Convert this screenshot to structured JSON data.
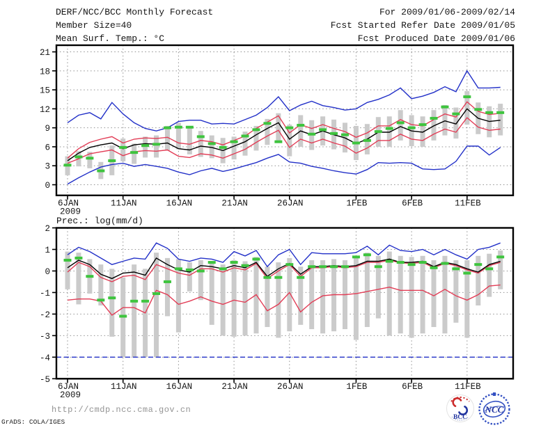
{
  "header": {
    "title": "DERF/NCC/BCC Monthly Forecast",
    "member_size": "Member Size=40",
    "temp_label": "Mean Surf. Temp.: °C",
    "for_range": "For 2009/01/06-2009/02/14",
    "fcst_started": "Fcst Started Refer Date 2009/01/05",
    "fcst_produced": "Fcst Produced Date 2009/01/06"
  },
  "panels": {
    "precip_label": "Prec.: log(mm/d)"
  },
  "footer": {
    "url": "http://cmdp.ncc.cma.gov.cn",
    "grads_credit": "GrADS: COLA/IGES",
    "bcc_text": "BCC",
    "ncc_text": "NCC"
  },
  "colors": {
    "frame": "#000000",
    "text": "#161616",
    "grid": "#909090",
    "bar": "#cbcbcb",
    "blue": "#2230c8",
    "red": "#e23c55",
    "green": "#3ec43e",
    "black": "#000000",
    "url_gray": "#949494",
    "logo_navy": "#21349f",
    "logo_blue": "#3350c2",
    "logo_red": "#cc2b2b"
  },
  "chart_data": [
    {
      "type": "line",
      "name": "temperature-chart",
      "title": "Mean Surf. Temp.: °C",
      "x_start": "2009-01-06",
      "x_end": "2009-02-14",
      "n_days": 40,
      "ylim": [
        -1.68,
        22.05
      ],
      "yticks": [
        0,
        3,
        6,
        9,
        12,
        15,
        18,
        21
      ],
      "xticks": [
        {
          "day": 1,
          "label": "6JAN",
          "sublabel": "2009"
        },
        {
          "day": 6,
          "label": "11JAN"
        },
        {
          "day": 11,
          "label": "16JAN"
        },
        {
          "day": 16,
          "label": "21JAN"
        },
        {
          "day": 21,
          "label": "26JAN"
        },
        {
          "day": 27,
          "label": "1FEB"
        },
        {
          "day": 32,
          "label": "6FEB"
        },
        {
          "day": 37,
          "label": "11FEB"
        }
      ],
      "series": [
        {
          "name": "ensemble-max",
          "color": "blue",
          "style": "line",
          "values": [
            9.8,
            11.0,
            11.4,
            10.4,
            13.0,
            11.2,
            9.8,
            8.9,
            8.5,
            9.0,
            10.0,
            10.2,
            10.2,
            9.6,
            9.7,
            9.6,
            10.3,
            11.0,
            12.2,
            13.9,
            11.7,
            12.6,
            13.2,
            12.5,
            12.2,
            11.8,
            12.0,
            13.0,
            13.5,
            14.2,
            15.3,
            13.6,
            14.0,
            14.6,
            15.5,
            14.7,
            18.0,
            15.3,
            15.3,
            15.4
          ]
        },
        {
          "name": "ensemble-min",
          "color": "blue",
          "style": "line",
          "values": [
            0.1,
            1.1,
            2.0,
            2.8,
            3.2,
            3.4,
            2.9,
            3.2,
            2.9,
            2.6,
            2.0,
            1.6,
            2.2,
            2.6,
            2.1,
            2.5,
            3.0,
            3.5,
            4.2,
            4.8,
            3.6,
            3.4,
            2.9,
            2.6,
            2.2,
            1.9,
            1.7,
            2.4,
            3.5,
            3.4,
            3.5,
            3.4,
            2.5,
            2.4,
            2.5,
            3.7,
            6.1,
            6.1,
            4.7,
            5.9
          ]
        },
        {
          "name": "upper-quartile",
          "color": "red",
          "style": "line",
          "values": [
            4.2,
            5.7,
            6.7,
            7.2,
            7.6,
            6.6,
            7.2,
            7.4,
            7.3,
            7.5,
            6.6,
            6.4,
            7.0,
            6.8,
            6.3,
            7.0,
            7.7,
            8.9,
            9.9,
            10.9,
            8.2,
            9.5,
            8.9,
            9.5,
            8.9,
            8.4,
            7.5,
            8.2,
            9.3,
            9.3,
            10.3,
            9.5,
            9.3,
            10.3,
            11.2,
            10.7,
            13.1,
            11.6,
            11.1,
            11.3
          ]
        },
        {
          "name": "lower-quartile",
          "color": "red",
          "style": "line",
          "values": [
            3.4,
            4.1,
            4.9,
            5.2,
            5.5,
            4.6,
            5.2,
            5.4,
            5.3,
            5.5,
            4.5,
            4.3,
            4.9,
            4.7,
            4.2,
            4.9,
            5.6,
            6.7,
            7.7,
            8.6,
            5.9,
            7.2,
            6.6,
            7.2,
            6.6,
            6.1,
            5.0,
            5.8,
            7.0,
            7.0,
            8.0,
            7.2,
            7.0,
            8.0,
            8.8,
            8.3,
            10.6,
            9.1,
            8.6,
            8.8
          ]
        },
        {
          "name": "ensemble-mean",
          "color": "black",
          "style": "line",
          "values": [
            3.8,
            5.0,
            5.9,
            6.3,
            6.6,
            5.7,
            6.3,
            6.5,
            6.4,
            6.6,
            5.7,
            5.5,
            6.1,
            5.9,
            5.4,
            6.1,
            6.8,
            7.9,
            8.9,
            9.8,
            7.2,
            8.5,
            7.9,
            8.5,
            7.9,
            7.4,
            6.5,
            7.2,
            8.3,
            8.3,
            9.2,
            8.5,
            8.3,
            9.3,
            10.1,
            9.6,
            12.0,
            10.5,
            10.0,
            10.2
          ]
        },
        {
          "name": "control-marker",
          "color": "green",
          "style": "dashes",
          "values": [
            3.1,
            4.4,
            4.2,
            2.2,
            3.8,
            5.9,
            5.1,
            6.2,
            6.4,
            9.0,
            9.1,
            9.1,
            7.6,
            6.5,
            5.9,
            6.8,
            7.7,
            8.7,
            9.7,
            6.8,
            9.0,
            9.4,
            8.0,
            8.7,
            8.1,
            7.9,
            6.6,
            7.0,
            8.4,
            8.9,
            9.8,
            9.0,
            9.5,
            10.5,
            12.3,
            11.2,
            13.9,
            11.9,
            11.4,
            11.4
          ]
        }
      ],
      "spread_bars": {
        "low": [
          1.5,
          2.9,
          2.6,
          0.9,
          1.5,
          3.7,
          3.3,
          4.3,
          4.3,
          5.4,
          5.6,
          4.8,
          4.4,
          4.2,
          3.4,
          4.0,
          4.6,
          5.4,
          6.3,
          6.9,
          4.5,
          6.0,
          5.5,
          6.2,
          5.6,
          5.1,
          3.9,
          4.8,
          6.0,
          6.0,
          7.0,
          6.1,
          6.0,
          7.0,
          7.8,
          7.3,
          9.5,
          8.0,
          7.5,
          7.8
        ],
        "high": [
          4.5,
          5.3,
          5.2,
          3.6,
          6.2,
          7.3,
          6.5,
          7.6,
          7.8,
          9.3,
          9.8,
          9.2,
          8.5,
          7.8,
          7.4,
          7.6,
          8.4,
          9.3,
          10.4,
          11.3,
          9.5,
          11.0,
          10.2,
          10.8,
          10.3,
          9.8,
          9.3,
          9.6,
          10.7,
          10.8,
          11.8,
          11.0,
          10.8,
          11.8,
          12.6,
          12.2,
          14.8,
          13.0,
          12.4,
          12.8
        ]
      }
    },
    {
      "type": "line",
      "name": "precipitation-chart",
      "title": "Prec.: log(mm/d)",
      "x_start": "2009-01-06",
      "x_end": "2009-02-14",
      "n_days": 40,
      "ylim": [
        -5,
        2
      ],
      "yticks": [
        2,
        1,
        0,
        -1,
        -2,
        -3,
        -4,
        -5
      ],
      "refline": {
        "value": -4,
        "color": "blue",
        "style": "dashed"
      },
      "xticks": [
        {
          "day": 1,
          "label": "6JAN",
          "sublabel": "2009"
        },
        {
          "day": 6,
          "label": "11JAN"
        },
        {
          "day": 11,
          "label": "16JAN"
        },
        {
          "day": 16,
          "label": "21JAN"
        },
        {
          "day": 21,
          "label": "26JAN"
        },
        {
          "day": 27,
          "label": "1FEB"
        },
        {
          "day": 32,
          "label": "6FEB"
        },
        {
          "day": 37,
          "label": "11FEB"
        }
      ],
      "series": [
        {
          "name": "ensemble-max",
          "color": "blue",
          "style": "line",
          "values": [
            0.75,
            1.1,
            0.9,
            0.6,
            0.3,
            0.45,
            0.6,
            0.55,
            1.3,
            1.05,
            0.55,
            0.45,
            0.6,
            0.55,
            0.4,
            0.9,
            0.7,
            0.95,
            0.2,
            0.75,
            1.0,
            0.3,
            0.85,
            0.8,
            0.8,
            0.8,
            0.85,
            1.15,
            0.75,
            1.2,
            0.95,
            0.9,
            1.0,
            0.75,
            1.0,
            0.75,
            0.55,
            1.0,
            1.1,
            1.3
          ]
        },
        {
          "name": "upper-quartile",
          "color": "red",
          "style": "line",
          "values": [
            -0.05,
            0.4,
            0.2,
            -0.3,
            -0.5,
            -0.25,
            -0.2,
            -0.4,
            0.3,
            0.1,
            -0.1,
            -0.2,
            0.1,
            0.1,
            -0.05,
            0.15,
            0.05,
            0.35,
            -0.35,
            0.0,
            0.3,
            -0.25,
            0.15,
            0.15,
            0.2,
            0.15,
            0.2,
            0.4,
            0.4,
            0.5,
            0.38,
            0.35,
            0.4,
            0.15,
            0.35,
            0.25,
            0.05,
            -0.1,
            0.25,
            0.4
          ]
        },
        {
          "name": "lower-quartile",
          "color": "red",
          "style": "line",
          "values": [
            -1.35,
            -1.3,
            -1.3,
            -1.4,
            -2.05,
            -1.7,
            -1.7,
            -1.95,
            -0.9,
            -1.1,
            -1.55,
            -1.4,
            -1.2,
            -1.4,
            -1.55,
            -1.35,
            -1.45,
            -1.1,
            -1.85,
            -1.55,
            -1.0,
            -1.9,
            -1.45,
            -1.15,
            -1.1,
            -1.1,
            -1.05,
            -0.95,
            -0.85,
            -0.75,
            -0.9,
            -0.9,
            -0.9,
            -1.15,
            -0.85,
            -1.15,
            -1.35,
            -1.1,
            -0.7,
            -0.65
          ]
        },
        {
          "name": "ensemble-mean",
          "color": "black",
          "style": "line",
          "values": [
            0.15,
            0.5,
            0.3,
            -0.15,
            -0.35,
            -0.1,
            -0.05,
            -0.2,
            0.6,
            0.3,
            0.05,
            -0.05,
            0.25,
            0.2,
            0.1,
            0.25,
            0.15,
            0.4,
            -0.25,
            0.1,
            0.35,
            -0.15,
            0.2,
            0.2,
            0.25,
            0.2,
            0.25,
            0.45,
            0.45,
            0.55,
            0.4,
            0.4,
            0.45,
            0.2,
            0.4,
            0.3,
            0.1,
            -0.05,
            0.3,
            0.45
          ]
        },
        {
          "name": "control-marker",
          "color": "green",
          "style": "dashes",
          "values": [
            0.5,
            0.6,
            -0.25,
            -1.35,
            -1.25,
            -2.1,
            -1.4,
            -1.4,
            -1.05,
            -0.5,
            0.1,
            0.05,
            0.0,
            0.4,
            0.1,
            0.4,
            0.25,
            0.55,
            -0.3,
            -0.3,
            0.3,
            -0.3,
            0.2,
            0.2,
            0.2,
            0.2,
            0.65,
            0.75,
            0.2,
            0.45,
            0.4,
            0.3,
            0.4,
            0.15,
            0.35,
            0.1,
            -0.1,
            0.3,
            0.1,
            0.65
          ]
        }
      ],
      "spread_bars": {
        "low": [
          -0.85,
          -1.55,
          -1.05,
          -1.6,
          -3.05,
          -4,
          -4,
          -4,
          -4,
          -2.1,
          -2.85,
          -0.95,
          -1.35,
          -2.5,
          -3.0,
          -3.05,
          -3.0,
          -2.9,
          -2.6,
          -3.1,
          -2.8,
          -2.5,
          -2.7,
          -2.9,
          -2.8,
          -2.7,
          -3.2,
          -2.6,
          -2.2,
          -3.0,
          -2.9,
          -3.1,
          -2.9,
          -2.6,
          -2.9,
          -2.4,
          -3.1,
          -1.6,
          -1.2,
          -0.85
        ],
        "high": [
          0.9,
          0.85,
          0.55,
          0.3,
          0.1,
          -0.3,
          0.3,
          0.1,
          0.85,
          0.6,
          0.55,
          0.4,
          0.5,
          0.45,
          0.3,
          0.5,
          0.45,
          0.65,
          0.2,
          0.4,
          0.6,
          0.2,
          0.5,
          0.5,
          0.55,
          0.5,
          0.6,
          0.85,
          0.7,
          0.9,
          0.7,
          0.65,
          0.7,
          0.5,
          0.7,
          0.5,
          0.5,
          0.7,
          0.8,
          0.95
        ]
      }
    }
  ]
}
